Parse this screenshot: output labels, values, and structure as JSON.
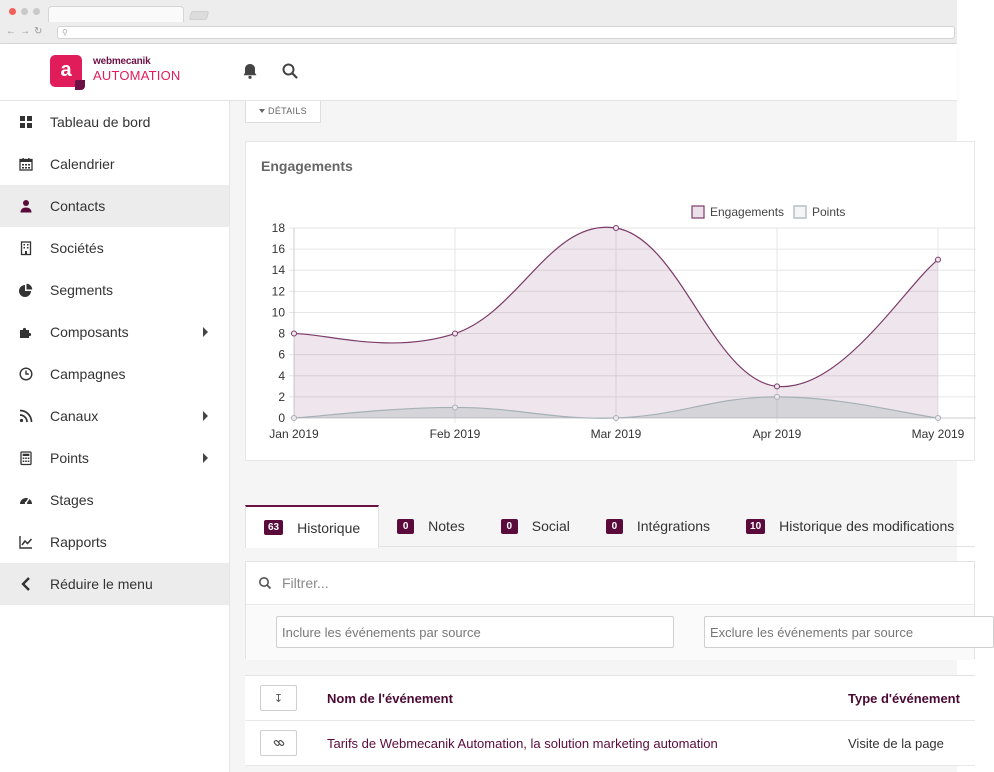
{
  "brand": {
    "logo_letter": "a",
    "name_small": "webmecanik",
    "name_big": "AUTOMATION",
    "primary_color": "#e01d5a",
    "dark_color": "#6b1145"
  },
  "header": {
    "icons": [
      "bell-icon",
      "search-icon"
    ]
  },
  "sidebar": {
    "items": [
      {
        "label": "Tableau de bord",
        "icon": "dashboard-icon",
        "has_submenu": false,
        "active": false
      },
      {
        "label": "Calendrier",
        "icon": "calendar-icon",
        "has_submenu": false,
        "active": false
      },
      {
        "label": "Contacts",
        "icon": "user-icon",
        "has_submenu": false,
        "active": true
      },
      {
        "label": "Sociétés",
        "icon": "building-icon",
        "has_submenu": false,
        "active": false
      },
      {
        "label": "Segments",
        "icon": "pie-chart-icon",
        "has_submenu": false,
        "active": false
      },
      {
        "label": "Composants",
        "icon": "puzzle-icon",
        "has_submenu": true,
        "active": false
      },
      {
        "label": "Campagnes",
        "icon": "clock-icon",
        "has_submenu": false,
        "active": false
      },
      {
        "label": "Canaux",
        "icon": "rss-icon",
        "has_submenu": true,
        "active": false
      },
      {
        "label": "Points",
        "icon": "calculator-icon",
        "has_submenu": true,
        "active": false
      },
      {
        "label": "Stages",
        "icon": "tachometer-icon",
        "has_submenu": false,
        "active": false
      },
      {
        "label": "Rapports",
        "icon": "line-chart-icon",
        "has_submenu": false,
        "active": false
      }
    ],
    "collapse_label": "Réduire le menu"
  },
  "details_button": {
    "label": "DÉTAILS"
  },
  "chart_card": {
    "title": "Engagements"
  },
  "chart_data": {
    "type": "area",
    "title": "Engagements",
    "categories": [
      "Jan 2019",
      "Feb 2019",
      "Mar 2019",
      "Apr 2019",
      "May 2019"
    ],
    "series": [
      {
        "name": "Engagements",
        "values": [
          8,
          8,
          18,
          3,
          15
        ],
        "color": "#7b3b6b"
      },
      {
        "name": "Points",
        "values": [
          0,
          1,
          0,
          2,
          0
        ],
        "color": "#a6b1b6"
      }
    ],
    "ylim": [
      0,
      18
    ],
    "yticks": [
      0,
      2,
      4,
      6,
      8,
      10,
      12,
      14,
      16,
      18
    ],
    "grid": true,
    "legend_position": "top"
  },
  "tabs": [
    {
      "count": "63",
      "label": "Historique",
      "active": true
    },
    {
      "count": "0",
      "label": "Notes",
      "active": false
    },
    {
      "count": "0",
      "label": "Social",
      "active": false
    },
    {
      "count": "0",
      "label": "Intégrations",
      "active": false
    },
    {
      "count": "10",
      "label": "Historique des modifications",
      "active": false
    }
  ],
  "filters": {
    "search_placeholder": "Filtrer...",
    "include_placeholder": "Inclure les événements par source",
    "exclude_placeholder": "Exclure les événements par source"
  },
  "table": {
    "sort_icon": "↧",
    "headers": {
      "name": "Nom de l'événement",
      "type": "Type d'événement"
    },
    "rows": [
      {
        "name": "Tarifs de Webmecanik Automation, la solution marketing automation",
        "type": "Visite de la page",
        "icon": "link-icon"
      }
    ]
  }
}
